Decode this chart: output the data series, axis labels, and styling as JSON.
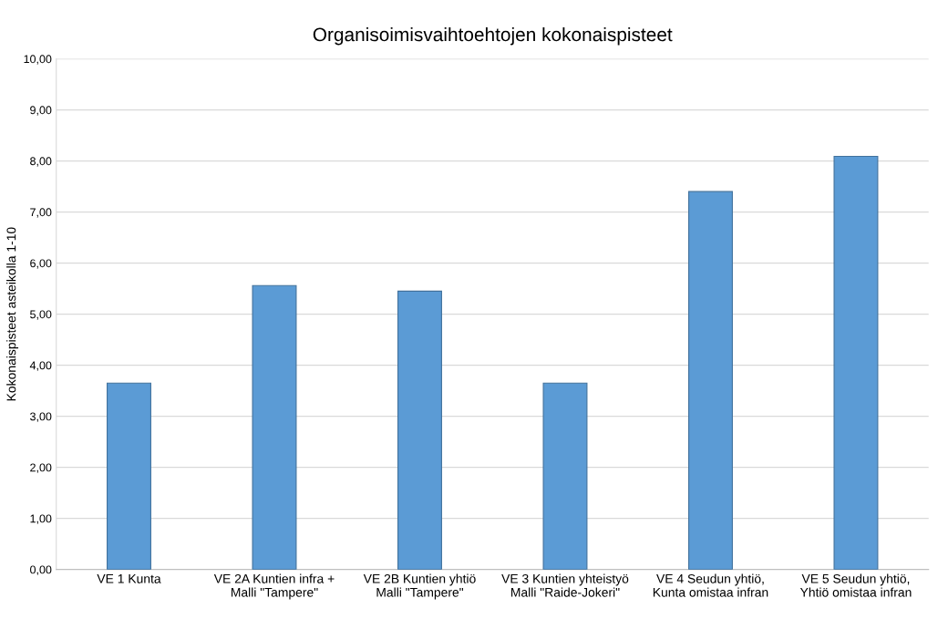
{
  "chart_data": {
    "type": "bar",
    "title": "Organisoimisvaihtoehtojen kokonaispisteet",
    "ylabel": "Kokonaispisteet asteikolla 1-10",
    "categories": [
      "VE 1 Kunta",
      "VE 2A Kuntien infra +\nMalli \"Tampere\"",
      "VE 2B Kuntien yhtiö\nMalli \"Tampere\"",
      "VE 3 Kuntien yhteistyö\nMalli \"Raide-Jokeri\"",
      "VE 4 Seudun yhtiö,\nKunta omistaa infran",
      "VE 5 Seudun yhtiö,\nYhtiö omistaa infran"
    ],
    "values": [
      3.65,
      5.56,
      5.45,
      3.65,
      7.4,
      8.09
    ],
    "color": "#5b9bd5",
    "ylim": [
      0,
      10
    ],
    "yticks": [
      {
        "value": 0,
        "label": "0,00"
      },
      {
        "value": 1,
        "label": "1,00"
      },
      {
        "value": 2,
        "label": "2,00"
      },
      {
        "value": 3,
        "label": "3,00"
      },
      {
        "value": 4,
        "label": "4,00"
      },
      {
        "value": 5,
        "label": "5,00"
      },
      {
        "value": 6,
        "label": "6,00"
      },
      {
        "value": 7,
        "label": "7,00"
      },
      {
        "value": 8,
        "label": "8,00"
      },
      {
        "value": 9,
        "label": "9,00"
      },
      {
        "value": 10,
        "label": "10,00"
      }
    ],
    "grid": "y",
    "legend": false
  }
}
